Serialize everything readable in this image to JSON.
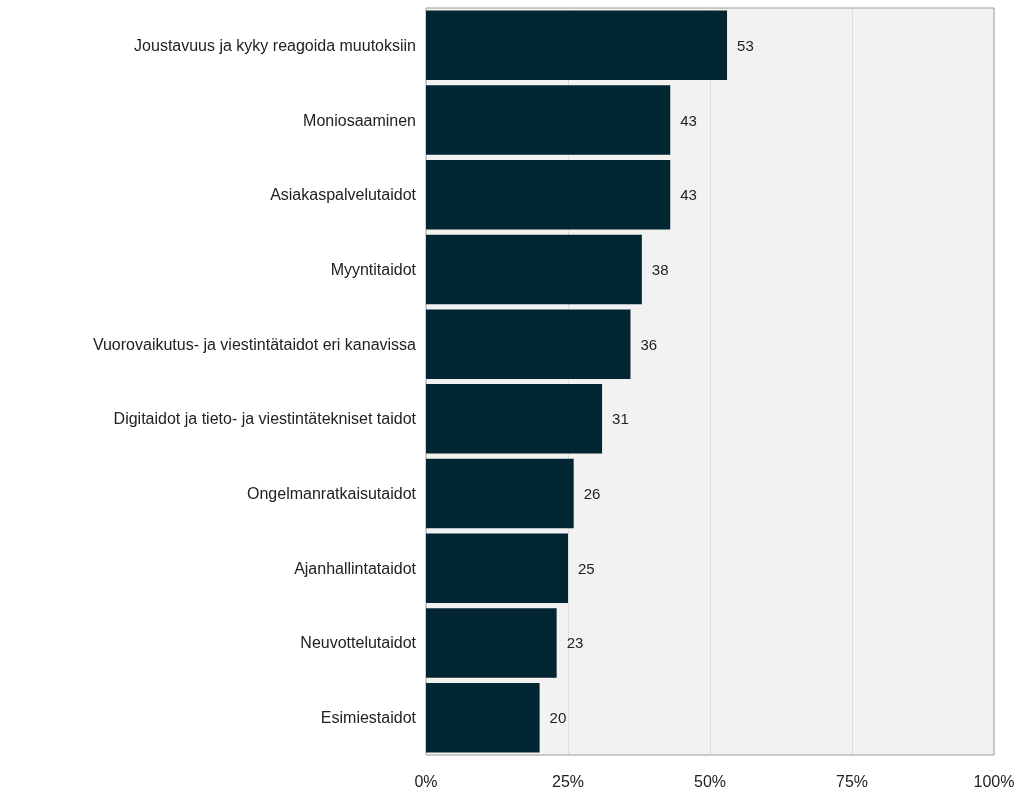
{
  "chart_data": {
    "type": "bar",
    "orientation": "horizontal",
    "categories": [
      "Joustavuus ja kyky reagoida muutoksiin",
      "Moniosaaminen",
      "Asiakaspalvelutaidot",
      "Myyntitaidot",
      "Vuorovaikutus- ja viestintätaidot eri kanavissa",
      "Digitaidot ja tieto- ja viestintätekniset taidot",
      "Ongelmanratkaisutaidot",
      "Ajanhallintataidot",
      "Neuvottelutaidot",
      "Esimiestaidot"
    ],
    "values": [
      53,
      43,
      43,
      38,
      36,
      31,
      26,
      25,
      23,
      20
    ],
    "color": "#022532",
    "xlim": [
      0,
      100
    ],
    "xticks": [
      {
        "value": 0,
        "label": "0%"
      },
      {
        "value": 25,
        "label": "25%"
      },
      {
        "value": 50,
        "label": "50%"
      },
      {
        "value": 75,
        "label": "75%"
      },
      {
        "value": 100,
        "label": "100%"
      }
    ],
    "grid": "x",
    "data_labels": true
  }
}
